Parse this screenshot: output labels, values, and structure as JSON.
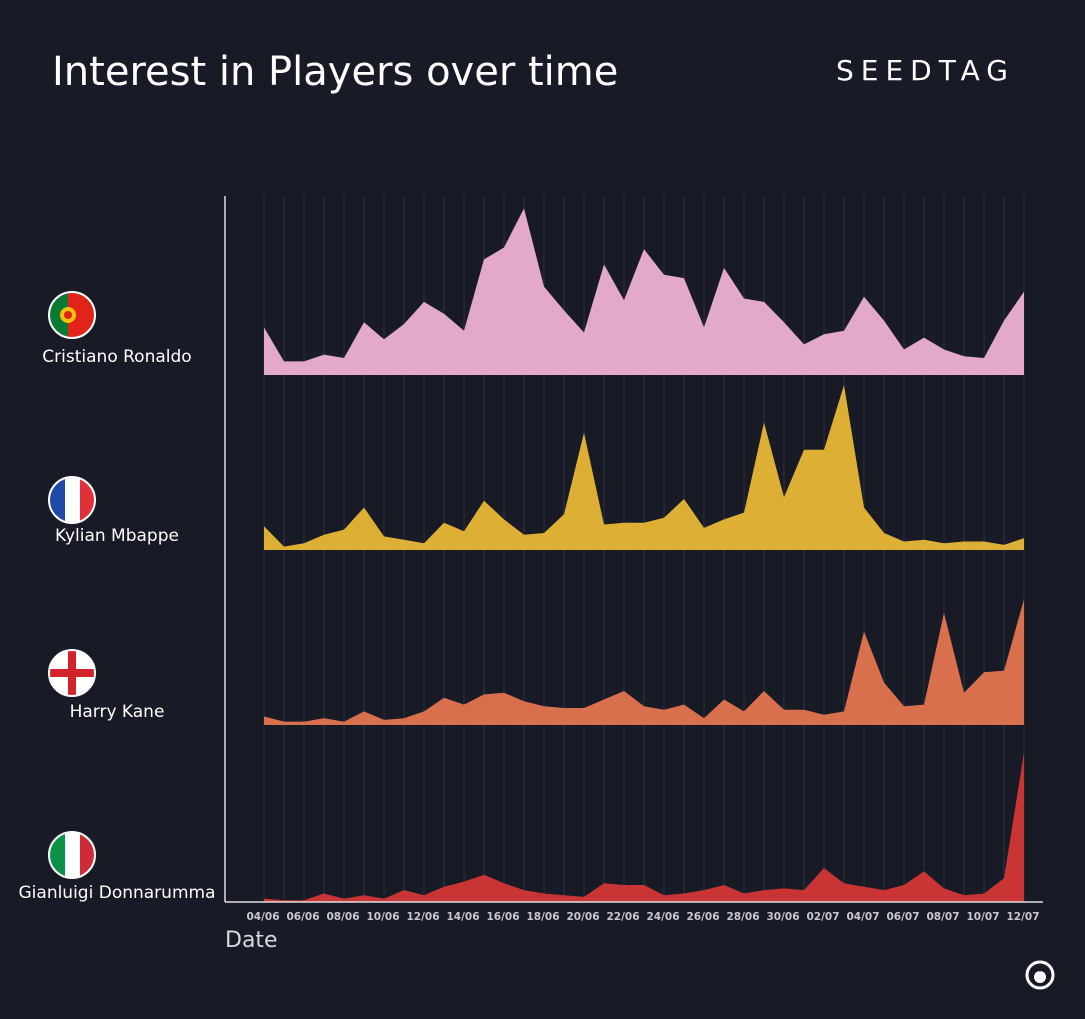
{
  "brand": "SEEDTAG",
  "chart_data": {
    "type": "area",
    "title": "Interest in Players over time",
    "x_label": "Date",
    "grid": true,
    "ylim": [
      0,
      100
    ],
    "categories": [
      "04/06",
      null,
      "06/06",
      null,
      "08/06",
      null,
      "10/06",
      null,
      "12/06",
      null,
      "14/06",
      null,
      "16/06",
      null,
      "18/06",
      null,
      "20/06",
      null,
      "22/06",
      null,
      "24/06",
      null,
      "26/06",
      null,
      "28/06",
      null,
      "30/06",
      null,
      "02/07",
      null,
      "04/07",
      null,
      "06/07",
      null,
      "08/07",
      null,
      "10/07",
      null,
      "12/07"
    ],
    "series": [
      {
        "name": "Cristiano Ronaldo",
        "color": "#e3a9cb",
        "values": [
          28,
          8,
          8,
          12,
          10,
          31,
          21,
          30,
          43,
          36,
          26,
          68,
          75,
          98,
          52,
          38,
          25,
          65,
          44,
          74,
          59,
          57,
          28,
          63,
          45,
          43,
          31,
          18,
          24,
          26,
          46,
          32,
          15,
          22,
          15,
          11,
          10,
          32,
          49
        ]
      },
      {
        "name": "Kylian Mbappe",
        "color": "#ddaf34",
        "values": [
          14,
          2,
          4,
          9,
          12,
          25,
          8,
          6,
          4,
          16,
          11,
          29,
          18,
          9,
          10,
          21,
          69,
          15,
          16,
          16,
          19,
          30,
          13,
          18,
          22,
          75,
          31,
          59,
          59,
          97,
          25,
          10,
          5,
          6,
          4,
          5,
          5,
          3,
          7
        ]
      },
      {
        "name": "Harry Kane",
        "color": "#d8704e",
        "values": [
          5,
          2,
          2,
          4,
          2,
          8,
          3,
          4,
          8,
          16,
          12,
          18,
          19,
          14,
          11,
          10,
          10,
          15,
          20,
          11,
          9,
          12,
          4,
          15,
          8,
          20,
          9,
          9,
          6,
          8,
          55,
          25,
          11,
          12,
          66,
          19,
          31,
          32,
          74
        ]
      },
      {
        "name": "Gianluigi Donnarumma",
        "color": "#c93434",
        "values": [
          2,
          1,
          1,
          5,
          2,
          4,
          2,
          7,
          4,
          9,
          12,
          16,
          11,
          7,
          5,
          4,
          3,
          11,
          10,
          10,
          4,
          5,
          7,
          10,
          5,
          7,
          8,
          7,
          20,
          11,
          9,
          7,
          10,
          18,
          8,
          4,
          5,
          14,
          88
        ]
      }
    ]
  }
}
